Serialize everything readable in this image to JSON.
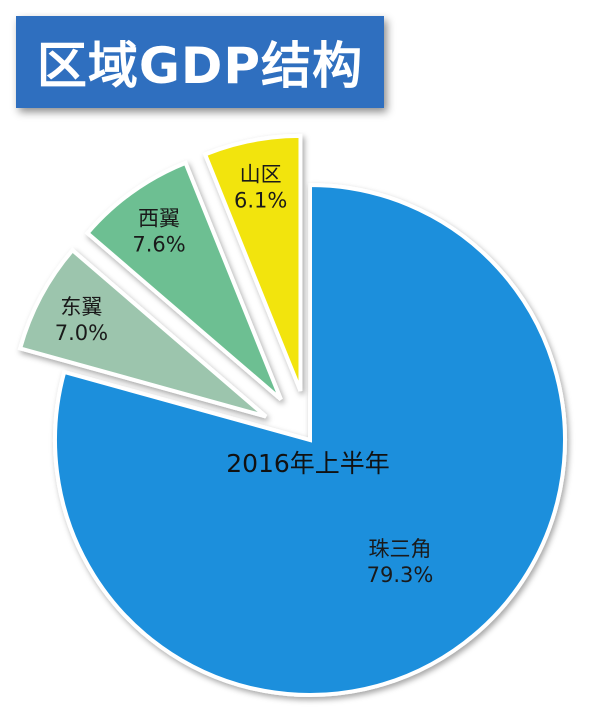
{
  "header": {
    "title": "区域GDP结构"
  },
  "chart_data": {
    "type": "pie",
    "title": "区域GDP结构",
    "center_label": "2016年上半年",
    "unit": "%",
    "slices": [
      {
        "name": "珠三角",
        "value": 79.3,
        "label": "79.3%",
        "color": "#1a8fdc",
        "exploded": false
      },
      {
        "name": "东翼",
        "value": 7.0,
        "label": "7.0%",
        "color": "#9cc5ad",
        "exploded": true
      },
      {
        "name": "西翼",
        "value": 7.6,
        "label": "7.6%",
        "color": "#6dbf92",
        "exploded": true
      },
      {
        "name": "山区",
        "value": 6.1,
        "label": "6.1%",
        "color": "#f2e40e",
        "exploded": true
      }
    ]
  }
}
